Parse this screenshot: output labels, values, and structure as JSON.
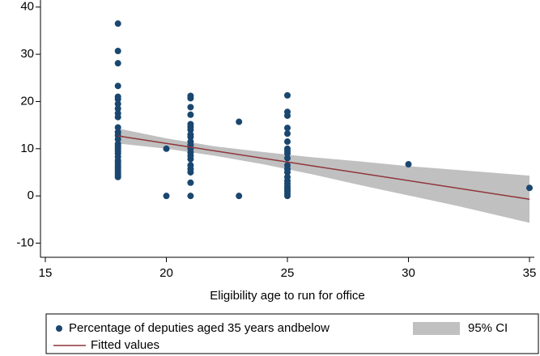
{
  "chart_data": {
    "type": "scatter",
    "xlabel": "Eligibility age to run for office",
    "xlim": [
      14.8,
      35.2
    ],
    "xticks": [
      15,
      20,
      25,
      30,
      35
    ],
    "ylim": [
      -13,
      41.5
    ],
    "yticks": [
      -10,
      0,
      10,
      20,
      30,
      40
    ],
    "grid": false,
    "series": [
      {
        "name": "Percentage of deputies aged 35 years andbelow",
        "type": "scatter",
        "color": "#1a476f",
        "x": [
          18,
          18,
          18,
          18,
          18,
          18,
          18,
          18,
          18,
          18,
          18,
          18,
          18,
          18,
          18,
          18,
          18,
          18,
          18,
          18,
          18,
          18,
          18,
          18,
          18,
          18,
          18,
          18,
          20,
          20,
          21,
          21,
          21,
          21,
          21,
          21,
          21,
          21,
          21,
          21,
          21,
          21,
          21,
          21,
          21,
          21,
          21,
          21,
          21,
          21,
          23,
          23,
          25,
          25,
          25,
          25,
          25,
          25,
          25,
          25,
          25,
          25,
          25,
          25,
          25,
          25,
          25,
          25,
          25,
          25,
          25,
          25,
          25,
          30,
          35
        ],
        "values": [
          36.5,
          30.7,
          28.1,
          23.3,
          21,
          20.5,
          19.5,
          18.5,
          17.5,
          16.7,
          14.5,
          13.5,
          12.8,
          12,
          11,
          10.5,
          10,
          9.5,
          9,
          8.3,
          7.5,
          7,
          6.5,
          6,
          5.5,
          5,
          4.5,
          4,
          10,
          0,
          21.2,
          20.7,
          18.8,
          17.2,
          15.2,
          14.6,
          14,
          13,
          12.5,
          11.5,
          10.8,
          10,
          9.2,
          8.5,
          7.8,
          6.5,
          5.7,
          5,
          2.8,
          0,
          15.7,
          0,
          21.3,
          17.8,
          17,
          14.4,
          13.2,
          11.5,
          10,
          9.5,
          9,
          8,
          6.5,
          5.7,
          5,
          4,
          3.2,
          2.6,
          2,
          1.5,
          1,
          0.5,
          0,
          6.7,
          1.7
        ]
      },
      {
        "name": "95% CI",
        "type": "area",
        "color": "#c0c0c0",
        "x": [
          18,
          20,
          22,
          24,
          26,
          28,
          30,
          32,
          35
        ],
        "upper": [
          14.3,
          12.2,
          10.5,
          9.3,
          8.2,
          7.3,
          6.3,
          5.5,
          4.3
        ],
        "lower": [
          11.1,
          10.0,
          8.5,
          6.7,
          4.6,
          2.3,
          0.1,
          -2.1,
          -5.7
        ]
      },
      {
        "name": "Fitted values",
        "type": "line",
        "color": "#90353b",
        "x": [
          18,
          35
        ],
        "values": [
          12.7,
          -0.7
        ]
      }
    ]
  }
}
